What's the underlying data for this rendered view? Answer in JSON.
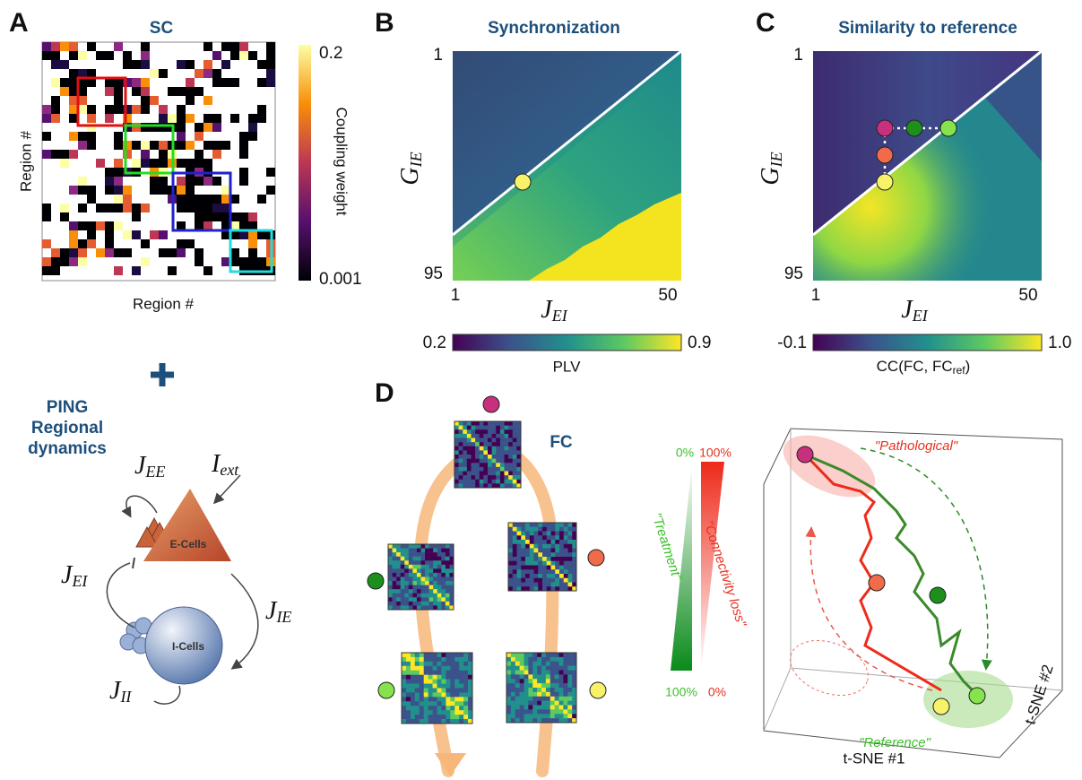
{
  "panel_a": {
    "letter": "A",
    "title": "SC",
    "y_label": "Region #",
    "x_label": "Region #",
    "colorbar": {
      "max": "0.2",
      "min": "0.001",
      "label": "Coupling weight"
    }
  },
  "model": {
    "title": [
      "PING",
      "Regional",
      "dynamics"
    ],
    "j_ee": {
      "main": "J",
      "sub": "EE"
    },
    "i_ext": {
      "main": "I",
      "sub": "ext"
    },
    "e_cells": "E-Cells",
    "i_cells": "I-Cells",
    "j_ei": {
      "main": "J",
      "sub": "EI"
    },
    "j_ie": {
      "main": "J",
      "sub": "IE"
    },
    "j_ii": {
      "main": "J",
      "sub": "II"
    }
  },
  "panel_b": {
    "letter": "B",
    "title": "Synchronization",
    "y_ticks": [
      "1",
      "95"
    ],
    "x_ticks": [
      "1",
      "50"
    ],
    "y_label": {
      "main": "G",
      "sub": "IE"
    },
    "x_label": {
      "main": "J",
      "sub": "EI"
    },
    "colorbar": {
      "min": "0.2",
      "max": "0.9",
      "label": "PLV"
    }
  },
  "panel_c": {
    "letter": "C",
    "title": "Similarity to reference",
    "y_ticks": [
      "1",
      "95"
    ],
    "x_ticks": [
      "1",
      "50"
    ],
    "y_label": {
      "main": "G",
      "sub": "IE"
    },
    "x_label": {
      "main": "J",
      "sub": "EI"
    },
    "colorbar": {
      "min": "-0.1",
      "max": "1.0",
      "label": [
        "CC(FC, FC",
        "ref",
        ")"
      ]
    }
  },
  "panel_d": {
    "letter": "D",
    "fc_label": "FC",
    "treatment": {
      "top": "0%",
      "bottom": "100%",
      "label": "\"Treatment\""
    },
    "connectivity_loss": {
      "top": "100%",
      "bottom": "0%",
      "label": "\"Connectivity loss\""
    },
    "pathological": "\"Pathological\"",
    "reference": "\"Reference\"",
    "axis1": "t-SNE #1",
    "axis2": "t-SNE #2"
  }
}
